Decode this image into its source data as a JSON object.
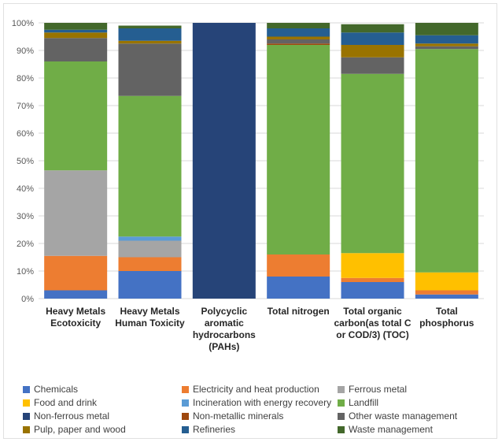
{
  "chart_data": {
    "type": "bar",
    "stacked": true,
    "normalized_percent": true,
    "categories": [
      [
        "Heavy Metals",
        "Ecotoxicity"
      ],
      [
        "Heavy Metals",
        "Human Toxicity"
      ],
      [
        "Polycyclic",
        "aromatic",
        "hydrocarbons",
        "(PAHs)"
      ],
      [
        "Total nitrogen"
      ],
      [
        "Total organic",
        "carbon(as total C",
        "or COD/3) (TOC)"
      ],
      [
        "Total",
        "phosphorus"
      ]
    ],
    "ylim": [
      0,
      100
    ],
    "yticks": [
      "0%",
      "10%",
      "20%",
      "30%",
      "40%",
      "50%",
      "60%",
      "70%",
      "80%",
      "90%",
      "100%"
    ],
    "grid": true,
    "legend_position": "bottom",
    "series": [
      {
        "name": "Chemicals",
        "color": "#4472C4",
        "values": [
          3,
          10,
          0,
          8,
          6,
          1.5
        ]
      },
      {
        "name": "Electricity and heat production",
        "color": "#ED7D31",
        "values": [
          12.5,
          5,
          0,
          8,
          1.5,
          1.5
        ]
      },
      {
        "name": "Ferrous metal",
        "color": "#A5A5A5",
        "values": [
          31,
          6,
          0,
          0,
          0,
          0
        ]
      },
      {
        "name": "Food and drink",
        "color": "#FFC000",
        "values": [
          0,
          0,
          0,
          0,
          9,
          6.5
        ]
      },
      {
        "name": "Incineration with energy recovery",
        "color": "#5B9BD5",
        "values": [
          0,
          1.5,
          0,
          0,
          0,
          0
        ]
      },
      {
        "name": "Landfill",
        "color": "#70AD47",
        "values": [
          39.5,
          51,
          0,
          76,
          65,
          81
        ]
      },
      {
        "name": "Non-ferrous metal",
        "color": "#264478",
        "values": [
          0,
          0,
          100,
          0,
          0,
          0
        ]
      },
      {
        "name": "Non-metallic minerals",
        "color": "#9E480E",
        "values": [
          0,
          0,
          0,
          0.5,
          0,
          0
        ]
      },
      {
        "name": "Other waste management",
        "color": "#636363",
        "values": [
          8.5,
          19,
          0,
          1.5,
          6,
          1
        ]
      },
      {
        "name": "Pulp, paper and wood",
        "color": "#997300",
        "values": [
          2,
          1,
          0,
          1,
          4.5,
          1
        ]
      },
      {
        "name": "Refineries",
        "color": "#255E91",
        "values": [
          1,
          4.5,
          0,
          3,
          4.5,
          3
        ]
      },
      {
        "name": "Waste management",
        "color": "#43682B",
        "values": [
          2.5,
          1,
          0,
          2,
          3,
          4.5
        ]
      }
    ]
  }
}
